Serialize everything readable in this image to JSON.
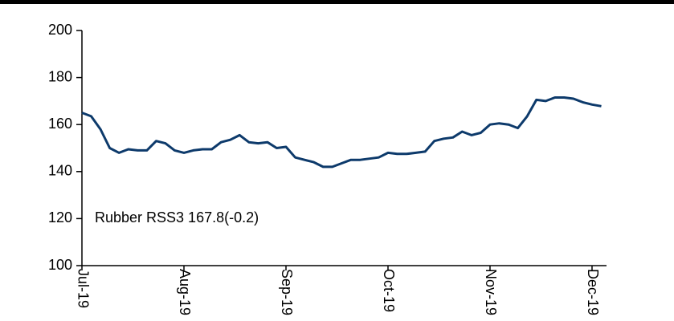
{
  "chart_data": {
    "type": "line",
    "annotation": "Rubber RSS3 167.8(-0.2)",
    "categories": [
      "Jul-19",
      null,
      null,
      null,
      null,
      null,
      null,
      null,
      null,
      null,
      null,
      "Aug-19",
      null,
      null,
      null,
      null,
      null,
      null,
      null,
      null,
      null,
      null,
      "Sep-19",
      null,
      null,
      null,
      null,
      null,
      null,
      null,
      null,
      null,
      null,
      "Oct-19",
      null,
      null,
      null,
      null,
      null,
      null,
      null,
      null,
      null,
      null,
      "Nov-19",
      null,
      null,
      null,
      null,
      null,
      null,
      null,
      null,
      null,
      null,
      "Dec-19",
      null
    ],
    "series": [
      {
        "name": "Rubber RSS3",
        "color": "#0d3a6b",
        "values": [
          165,
          163.5,
          158,
          150,
          148,
          149.5,
          149,
          149,
          153,
          152,
          149,
          148,
          149,
          149.5,
          149.5,
          152.5,
          153.5,
          155.5,
          152.5,
          152,
          152.5,
          150,
          150.5,
          146,
          145,
          144,
          142,
          142,
          143.5,
          145,
          145,
          145.5,
          146,
          148,
          147.5,
          147.5,
          148,
          148.5,
          153,
          154,
          154.5,
          157,
          155.5,
          156.5,
          160,
          160.5,
          160,
          158.5,
          163.5,
          170.5,
          170,
          171.5,
          171.5,
          171,
          169.5,
          168.5,
          167.8
        ]
      }
    ],
    "ylim": [
      100,
      200
    ],
    "yticks": [
      100,
      120,
      140,
      160,
      180,
      200
    ]
  }
}
